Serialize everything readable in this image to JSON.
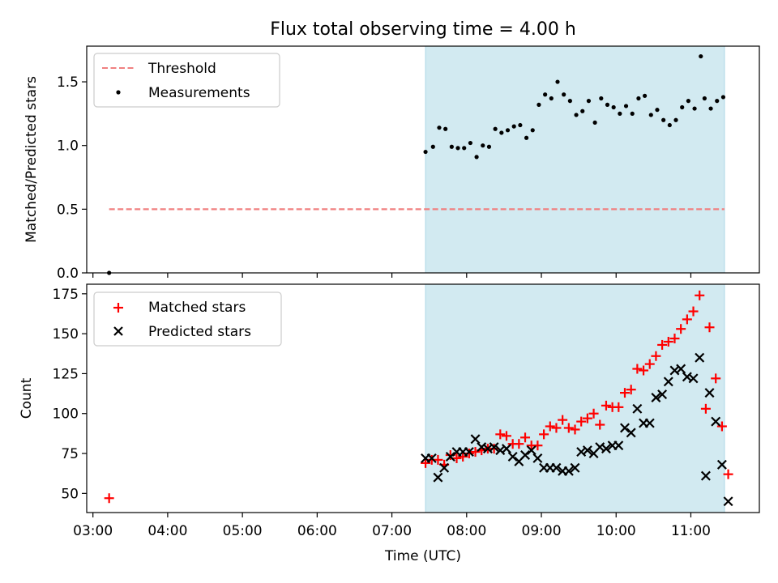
{
  "title": "Flux total observing time = 4.00 h",
  "chart_data": [
    {
      "type": "scatter",
      "panel": "top",
      "ylabel": "Matched/Predicted stars",
      "xlabel": "",
      "xlim": [
        "02:55",
        "11:55"
      ],
      "ylim": [
        0,
        1.78
      ],
      "yticks": [
        "0.0",
        "0.5",
        "1.0",
        "1.5"
      ],
      "grid": false,
      "legend_position": "upper-left",
      "shaded_interval": [
        "07:27",
        "11:27"
      ],
      "shade_color": "#add8e6",
      "threshold": {
        "name": "Threshold",
        "value": 0.5,
        "x_range": [
          "03:13",
          "11:27"
        ],
        "color": "#f08080",
        "style": "dashed"
      },
      "series": [
        {
          "name": "Measurements",
          "marker": "dot",
          "color": "#000000",
          "points": [
            [
              "03:13",
              0.0
            ],
            [
              "07:27",
              0.95
            ],
            [
              "07:33",
              0.99
            ],
            [
              "07:38",
              1.14
            ],
            [
              "07:43",
              1.13
            ],
            [
              "07:48",
              0.99
            ],
            [
              "07:53",
              0.98
            ],
            [
              "07:58",
              0.98
            ],
            [
              "08:03",
              1.02
            ],
            [
              "08:08",
              0.91
            ],
            [
              "08:13",
              1.0
            ],
            [
              "08:18",
              0.99
            ],
            [
              "08:23",
              1.13
            ],
            [
              "08:28",
              1.1
            ],
            [
              "08:33",
              1.12
            ],
            [
              "08:38",
              1.15
            ],
            [
              "08:43",
              1.16
            ],
            [
              "08:48",
              1.06
            ],
            [
              "08:53",
              1.12
            ],
            [
              "08:58",
              1.32
            ],
            [
              "09:03",
              1.4
            ],
            [
              "09:08",
              1.37
            ],
            [
              "09:13",
              1.5
            ],
            [
              "09:18",
              1.4
            ],
            [
              "09:23",
              1.35
            ],
            [
              "09:28",
              1.24
            ],
            [
              "09:33",
              1.27
            ],
            [
              "09:38",
              1.35
            ],
            [
              "09:43",
              1.18
            ],
            [
              "09:48",
              1.37
            ],
            [
              "09:53",
              1.32
            ],
            [
              "09:58",
              1.3
            ],
            [
              "10:03",
              1.25
            ],
            [
              "10:08",
              1.31
            ],
            [
              "10:13",
              1.25
            ],
            [
              "10:18",
              1.37
            ],
            [
              "10:23",
              1.39
            ],
            [
              "10:28",
              1.24
            ],
            [
              "10:33",
              1.28
            ],
            [
              "10:38",
              1.2
            ],
            [
              "10:43",
              1.16
            ],
            [
              "10:48",
              1.2
            ],
            [
              "10:53",
              1.3
            ],
            [
              "10:58",
              1.35
            ],
            [
              "11:03",
              1.29
            ],
            [
              "11:08",
              1.7
            ],
            [
              "11:11",
              1.37
            ],
            [
              "11:16",
              1.29
            ],
            [
              "11:21",
              1.35
            ],
            [
              "11:26",
              1.38
            ]
          ]
        }
      ]
    },
    {
      "type": "scatter",
      "panel": "bottom",
      "ylabel": "Count",
      "xlabel": "Time (UTC)",
      "xlim": [
        "02:55",
        "11:55"
      ],
      "ylim": [
        38,
        181
      ],
      "yticks": [
        "50",
        "75",
        "100",
        "125",
        "150",
        "175"
      ],
      "xticks": [
        "03:00",
        "04:00",
        "05:00",
        "06:00",
        "07:00",
        "08:00",
        "09:00",
        "10:00",
        "11:00"
      ],
      "grid": false,
      "legend_position": "upper-left",
      "shaded_interval": [
        "07:27",
        "11:27"
      ],
      "shade_color": "#add8e6",
      "series": [
        {
          "name": "Matched stars",
          "marker": "plus",
          "color": "#ff0000",
          "points": [
            [
              "03:13",
              47
            ],
            [
              "07:27",
              69
            ],
            [
              "07:32",
              71
            ],
            [
              "07:37",
              71
            ],
            [
              "07:42",
              68
            ],
            [
              "07:47",
              74
            ],
            [
              "07:52",
              72
            ],
            [
              "07:57",
              73
            ],
            [
              "08:02",
              75
            ],
            [
              "08:07",
              76
            ],
            [
              "08:12",
              77
            ],
            [
              "08:17",
              78
            ],
            [
              "08:22",
              78
            ],
            [
              "08:27",
              87
            ],
            [
              "08:32",
              86
            ],
            [
              "08:37",
              81
            ],
            [
              "08:42",
              81
            ],
            [
              "08:47",
              85
            ],
            [
              "08:52",
              80
            ],
            [
              "08:57",
              80
            ],
            [
              "09:02",
              87
            ],
            [
              "09:07",
              92
            ],
            [
              "09:12",
              91
            ],
            [
              "09:17",
              96
            ],
            [
              "09:22",
              91
            ],
            [
              "09:27",
              90
            ],
            [
              "09:32",
              95
            ],
            [
              "09:37",
              97
            ],
            [
              "09:42",
              100
            ],
            [
              "09:47",
              93
            ],
            [
              "09:52",
              105
            ],
            [
              "09:57",
              104
            ],
            [
              "10:02",
              104
            ],
            [
              "10:07",
              113
            ],
            [
              "10:12",
              115
            ],
            [
              "10:17",
              128
            ],
            [
              "10:22",
              127
            ],
            [
              "10:27",
              131
            ],
            [
              "10:32",
              136
            ],
            [
              "10:37",
              143
            ],
            [
              "10:42",
              145
            ],
            [
              "10:47",
              147
            ],
            [
              "10:52",
              153
            ],
            [
              "10:57",
              159
            ],
            [
              "11:02",
              164
            ],
            [
              "11:07",
              174
            ],
            [
              "11:12",
              103
            ],
            [
              "11:15",
              154
            ],
            [
              "11:20",
              122
            ],
            [
              "11:25",
              92
            ],
            [
              "11:30",
              62
            ]
          ]
        },
        {
          "name": "Predicted stars",
          "marker": "x",
          "color": "#000000",
          "points": [
            [
              "07:27",
              72
            ],
            [
              "07:32",
              72
            ],
            [
              "07:37",
              60
            ],
            [
              "07:42",
              66
            ],
            [
              "07:47",
              73
            ],
            [
              "07:52",
              76
            ],
            [
              "07:57",
              76
            ],
            [
              "08:02",
              76
            ],
            [
              "08:07",
              84
            ],
            [
              "08:12",
              79
            ],
            [
              "08:17",
              78
            ],
            [
              "08:22",
              79
            ],
            [
              "08:27",
              77
            ],
            [
              "08:32",
              78
            ],
            [
              "08:37",
              73
            ],
            [
              "08:42",
              70
            ],
            [
              "08:47",
              74
            ],
            [
              "08:52",
              77
            ],
            [
              "08:57",
              72
            ],
            [
              "09:02",
              66
            ],
            [
              "09:07",
              66
            ],
            [
              "09:12",
              66
            ],
            [
              "09:17",
              64
            ],
            [
              "09:22",
              64
            ],
            [
              "09:27",
              66
            ],
            [
              "09:32",
              76
            ],
            [
              "09:37",
              77
            ],
            [
              "09:42",
              75
            ],
            [
              "09:47",
              79
            ],
            [
              "09:52",
              78
            ],
            [
              "09:57",
              80
            ],
            [
              "10:02",
              80
            ],
            [
              "10:07",
              91
            ],
            [
              "10:12",
              88
            ],
            [
              "10:17",
              103
            ],
            [
              "10:22",
              94
            ],
            [
              "10:27",
              94
            ],
            [
              "10:32",
              110
            ],
            [
              "10:37",
              112
            ],
            [
              "10:42",
              120
            ],
            [
              "10:47",
              127
            ],
            [
              "10:52",
              128
            ],
            [
              "10:57",
              123
            ],
            [
              "11:02",
              122
            ],
            [
              "11:07",
              135
            ],
            [
              "11:12",
              61
            ],
            [
              "11:15",
              113
            ],
            [
              "11:20",
              95
            ],
            [
              "11:25",
              68
            ],
            [
              "11:30",
              45
            ]
          ]
        }
      ]
    }
  ]
}
